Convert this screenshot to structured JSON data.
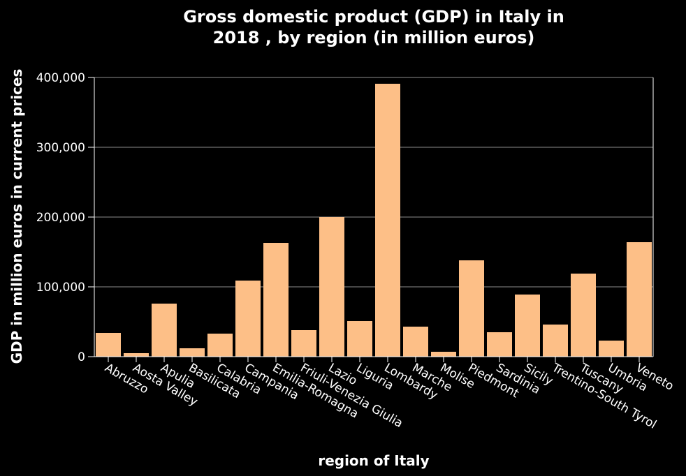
{
  "chart_data": {
    "type": "bar",
    "title_lines": [
      "Gross domestic product (GDP) in Italy in",
      "2018 , by region (in million euros)"
    ],
    "xlabel": "region of Italy",
    "ylabel": "GDP in million euros in current prices",
    "ylim": [
      0,
      400000
    ],
    "yticks": [
      0,
      100000,
      200000,
      300000,
      400000
    ],
    "ytick_labels": [
      "0",
      "100,000",
      "200,000",
      "300,000",
      "400,000"
    ],
    "grid": true,
    "bar_color": "#fdbf87",
    "categories": [
      "Abruzzo",
      "Aosta Valley",
      "Apulia",
      "Basilicata",
      "Calabria",
      "Campania",
      "Emilia-Romagna",
      "Friuli-Venezia Giulia",
      "Lazio",
      "Liguria",
      "Lombardy",
      "Marche",
      "Molise",
      "Piedmont",
      "Sardinia",
      "Sicily",
      "Trentino-South Tyrol",
      "Tuscany",
      "Umbria",
      "Veneto"
    ],
    "values": [
      34000,
      5000,
      76000,
      12000,
      33000,
      109000,
      163000,
      38000,
      200000,
      51000,
      391000,
      43000,
      7000,
      138000,
      35000,
      89000,
      46000,
      119000,
      23000,
      164000
    ]
  }
}
